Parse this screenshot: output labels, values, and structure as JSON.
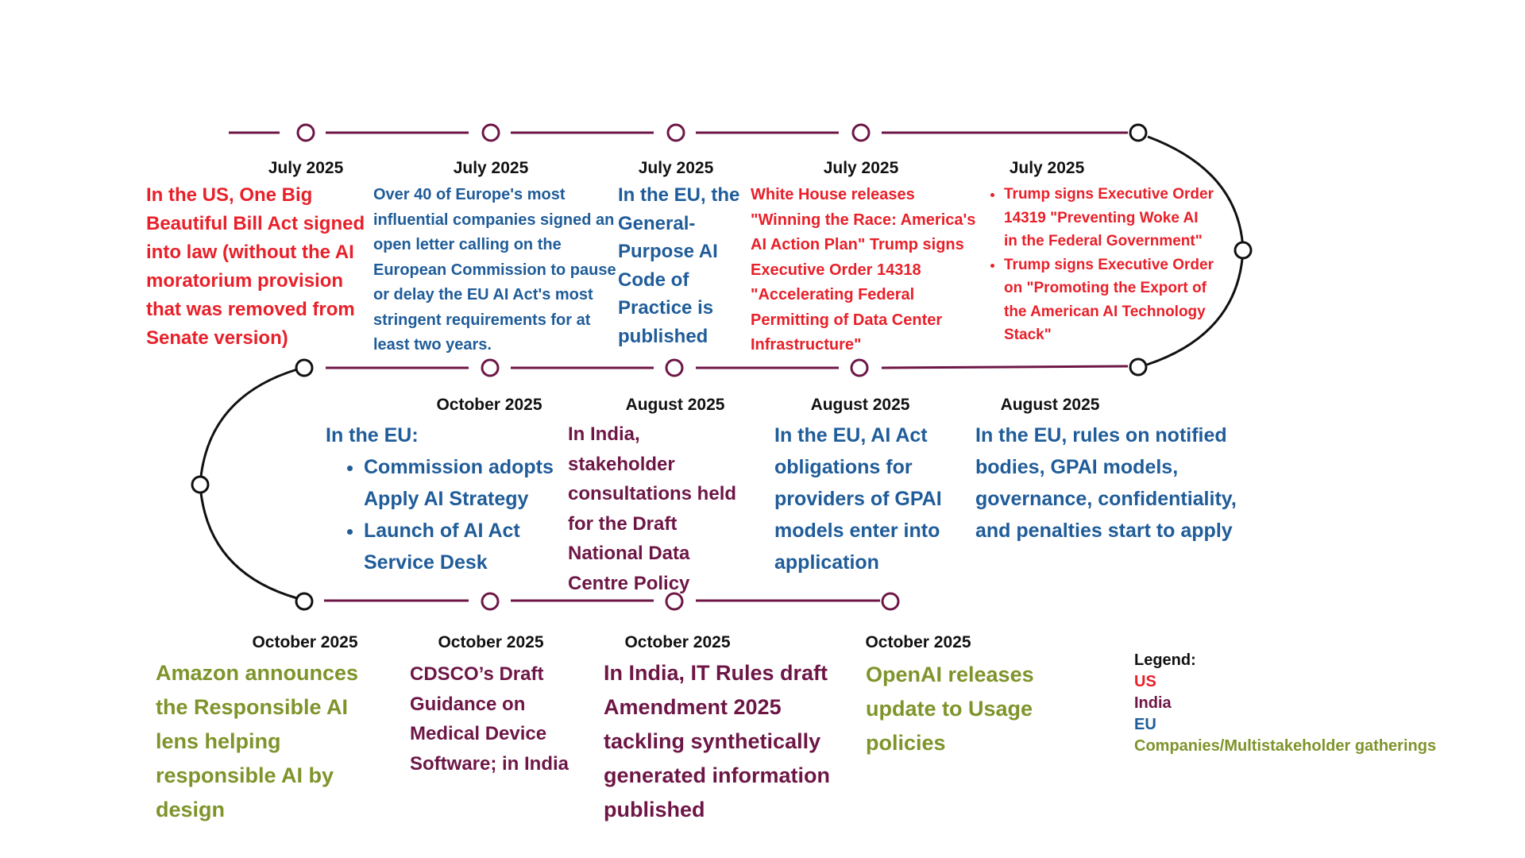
{
  "colors": {
    "us": "#e8202a",
    "india": "#6d1646",
    "eu": "#1f5c99",
    "companies": "#7e942b",
    "line": "#6d1646",
    "curve": "#111111"
  },
  "row1": {
    "e1": {
      "date": "July 2025",
      "text": "In the US, One Big Beautiful Bill Act signed into law (without the AI moratorium provision that was removed from Senate version)"
    },
    "e2": {
      "date": "July 2025",
      "text": "Over 40 of Europe's most influential companies signed an open letter calling on the European Commission to pause or delay the EU AI Act's most stringent requirements for at least two years."
    },
    "e3": {
      "date": "July 2025",
      "text": "In the EU, the General-Purpose AI Code of Practice is published"
    },
    "e4": {
      "date": "July 2025",
      "text": " White House releases \"Winning the Race: America's AI Action Plan\" Trump signs Executive Order 14318 \"Accelerating Federal Permitting of Data Center Infrastructure\""
    },
    "e5": {
      "date": "July 2025",
      "items": [
        "Trump signs Executive Order 14319 \"Preventing Woke AI in the Federal Government\"",
        "Trump signs Executive Order on \"Promoting the Export of the American AI Technology Stack\""
      ]
    }
  },
  "row2": {
    "e1": {
      "date": "October 2025",
      "heading": "In the EU:",
      "items": [
        "Commission adopts Apply AI Strategy",
        "Launch of AI Act Service Desk"
      ]
    },
    "e2": {
      "date": "August 2025",
      "text": "In India, stakeholder consultations held for the Draft National Data Centre Policy"
    },
    "e3": {
      "date": "August 2025",
      "text": "In the EU, AI Act obligations for providers of GPAI models enter into application"
    },
    "e4": {
      "date": "August 2025",
      "text": "In the EU, rules on notified bodies, GPAI models, governance, confidentiality, and penalties start to apply"
    }
  },
  "row3": {
    "e1": {
      "date": "October 2025",
      "text": "Amazon announces the Responsible AI lens helping responsible AI by design"
    },
    "e2": {
      "date": "October 2025",
      "text": "CDSCO’s Draft Guidance on Medical Device Software; in India"
    },
    "e3": {
      "date": "October 2025",
      "text": "In India, IT Rules draft Amendment 2025 tackling synthetically generated information published"
    },
    "e4": {
      "date": "October 2025",
      "text": "OpenAI releases update to Usage policies"
    }
  },
  "legend": {
    "title": "Legend:",
    "us": "US",
    "india": "India",
    "eu": "EU",
    "companies": "Companies/Multistakeholder gatherings"
  }
}
